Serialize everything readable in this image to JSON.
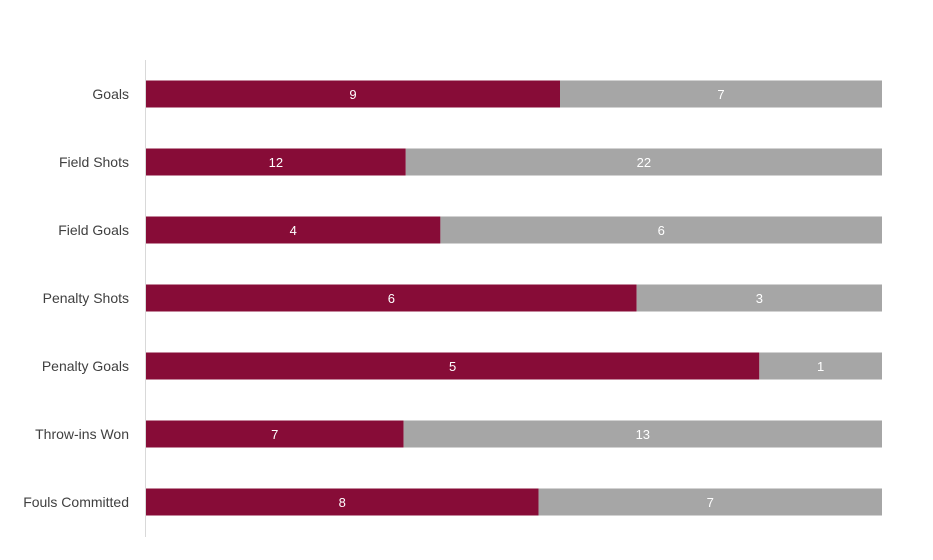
{
  "chart_data": {
    "type": "bar",
    "orientation": "horizontal",
    "stacked": "100%",
    "categories": [
      "Goals",
      "Field Shots",
      "Field Goals",
      "Penalty Shots",
      "Penalty Goals",
      "Throw-ins Won",
      "Fouls Committed"
    ],
    "series": [
      {
        "values": [
          9,
          12,
          4,
          6,
          5,
          7,
          8
        ],
        "color": "#870C37"
      },
      {
        "values": [
          7,
          22,
          6,
          3,
          1,
          13,
          7
        ],
        "color": "#A6A6A6"
      }
    ],
    "title": "",
    "xlabel": "",
    "ylabel": "",
    "grid": false,
    "legend": "none"
  }
}
